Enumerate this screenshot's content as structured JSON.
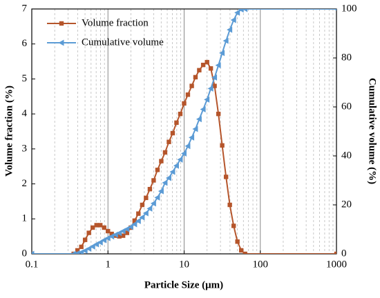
{
  "chart_data": {
    "type": "line",
    "x_label": "Particle Size (μm)",
    "y_label": "Volume fraction (%)",
    "y2_label": "Cumulative volume (%)",
    "x_log": true,
    "x": [
      0.1,
      0.355,
      0.398,
      0.447,
      0.501,
      0.562,
      0.631,
      0.708,
      0.794,
      0.891,
      1,
      1.12,
      1.26,
      1.41,
      1.58,
      1.78,
      2.0,
      2.24,
      2.51,
      2.82,
      3.16,
      3.55,
      3.98,
      4.47,
      5.01,
      5.62,
      6.31,
      7.08,
      7.94,
      8.91,
      10,
      11.2,
      12.6,
      14.1,
      15.8,
      17.8,
      20,
      22.4,
      25.1,
      28.2,
      31.6,
      35.5,
      39.8,
      44.7,
      50.1,
      56.2,
      63.1,
      1000
    ],
    "series": [
      {
        "name": "Volume fraction",
        "color": "#b5552b",
        "marker": "square",
        "values": [
          0,
          0,
          0.1,
          0.2,
          0.4,
          0.6,
          0.75,
          0.82,
          0.82,
          0.75,
          0.65,
          0.57,
          0.52,
          0.5,
          0.52,
          0.6,
          0.75,
          0.95,
          1.15,
          1.4,
          1.6,
          1.85,
          2.1,
          2.4,
          2.65,
          2.9,
          3.2,
          3.45,
          3.75,
          4.0,
          4.3,
          4.55,
          4.8,
          5.05,
          5.25,
          5.4,
          5.48,
          5.3,
          4.8,
          4.0,
          3.1,
          2.2,
          1.4,
          0.8,
          0.35,
          0.1,
          0,
          0
        ]
      },
      {
        "name": "Cumulative volume",
        "color": "#5b9bd5",
        "marker": "triangle-left",
        "axis": "y2",
        "values": [
          0,
          0,
          0.2,
          0.6,
          1.3,
          2.1,
          3,
          3.9,
          4.7,
          5.6,
          6.4,
          7.1,
          7.8,
          8.5,
          9.3,
          10.1,
          11,
          12.1,
          13.4,
          14.9,
          16.6,
          18.5,
          20.6,
          23,
          25.6,
          29,
          31,
          33.5,
          36,
          38.5,
          41,
          44,
          47.5,
          51,
          55,
          59,
          63,
          67.5,
          72,
          77,
          82,
          87,
          91.5,
          95.5,
          98.5,
          99.8,
          100,
          100
        ]
      }
    ],
    "xlim": [
      0.1,
      1000
    ],
    "xticks": [
      0.1,
      1,
      10,
      100,
      1000
    ],
    "ylim": [
      0,
      7
    ],
    "yticks": [
      0,
      1,
      2,
      3,
      4,
      5,
      6,
      7
    ],
    "y2lim": [
      0,
      100
    ],
    "y2ticks": [
      0,
      20,
      40,
      60,
      80,
      100
    ],
    "grid": true,
    "legend": "upper left"
  }
}
